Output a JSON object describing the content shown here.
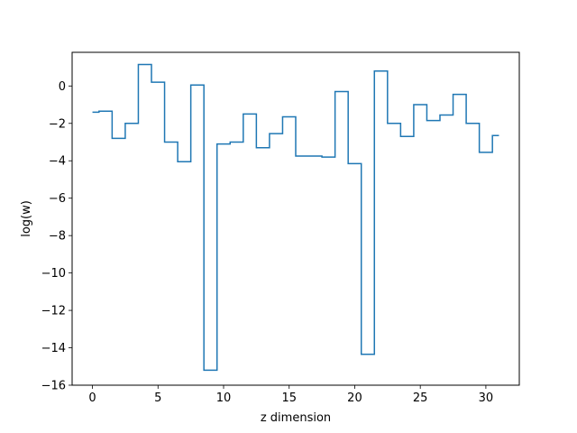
{
  "chart_data": {
    "type": "line",
    "drawstyle": "steps-mid",
    "title": "",
    "xlabel": "z dimension",
    "ylabel": "log(w)",
    "xlim": [
      -1.55,
      32.55
    ],
    "ylim": [
      -16,
      1.8
    ],
    "xticks": [
      0,
      5,
      10,
      15,
      20,
      25,
      30
    ],
    "yticks": [
      -16,
      -14,
      -12,
      -10,
      -8,
      -6,
      -4,
      -2,
      0
    ],
    "series": [
      {
        "color": "#1f77b4",
        "x": [
          0,
          1,
          2,
          3,
          4,
          5,
          6,
          7,
          8,
          9,
          10,
          11,
          12,
          13,
          14,
          15,
          16,
          17,
          18,
          19,
          20,
          21,
          22,
          23,
          24,
          25,
          26,
          27,
          28,
          29,
          30,
          31
        ],
        "y": [
          -1.4,
          -1.35,
          -2.8,
          -2.0,
          1.15,
          0.2,
          -3.0,
          -4.05,
          0.05,
          -15.2,
          -3.1,
          -3.0,
          -1.5,
          -3.3,
          -2.55,
          -1.65,
          -3.75,
          -3.75,
          -3.8,
          -0.3,
          -4.15,
          -14.35,
          0.8,
          -2.0,
          -2.7,
          -1.0,
          -1.85,
          -1.55,
          -0.45,
          -2.0,
          -3.55,
          -2.65
        ]
      }
    ]
  }
}
